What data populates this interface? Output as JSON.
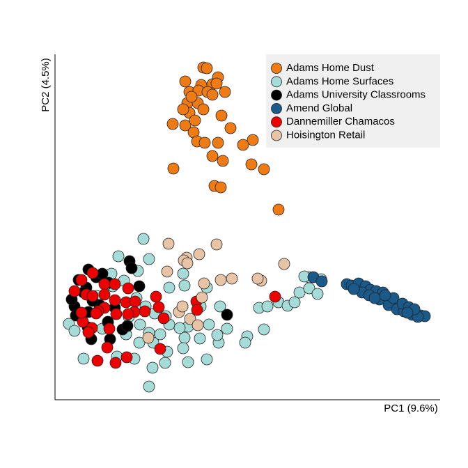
{
  "chart_data": {
    "type": "scatter",
    "xlabel": "PC1 (9.6%)",
    "ylabel": "PC2 (4.5%)",
    "xlim": [
      0,
      553
    ],
    "ylim": [
      0,
      496
    ],
    "legend": "upper right",
    "series": [
      {
        "name": "Adams Home Surfaces",
        "color": "#a6dcd8",
        "x": [
          127,
          91,
          135,
          164,
          186,
          218,
          184,
          119,
          81,
          67,
          99,
          83,
          20,
          41,
          135,
          140,
          158,
          191,
          218,
          235,
          233,
          208,
          186,
          184,
          161,
          141,
          151,
          135,
          121,
          114,
          89,
          102,
          122,
          130,
          143,
          164,
          191,
          221,
          247,
          276,
          273,
          237,
          209,
          300,
          293,
          305,
          321,
          334,
          344,
          351,
          365,
          365,
          377,
          382,
          358,
          68,
          28,
          117,
          76,
          106,
          179,
          159,
          60,
          74
        ],
        "values": [
          231,
          206,
          202,
          161,
          164,
          161,
          181,
          185,
          181,
          179,
          171,
          163,
          109,
          59,
          19,
          46,
          53,
          54,
          58,
          82,
          93,
          88,
          89,
          74,
          69,
          82,
          94,
          96,
          82,
          59,
          62,
          94,
          108,
          134,
          124,
          108,
          105,
          108,
          102,
          91,
          82,
          134,
          134,
          101,
          132,
          134,
          140,
          135,
          140,
          154,
          160,
          176,
          152,
          173,
          177,
          102,
          99,
          146,
          111,
          119,
          103,
          120,
          149,
          166
        ]
      },
      {
        "name": "Adams University Classrooms",
        "color": "#000000",
        "x": [
          107,
          110,
          48,
          34,
          59,
          68,
          77,
          121,
          45,
          41,
          28,
          48,
          30,
          47,
          76,
          97,
          104,
          52,
          79,
          247,
          86,
          64,
          24,
          54
        ],
        "values": [
          199,
          189,
          187,
          172,
          176,
          181,
          168,
          163,
          161,
          154,
          134,
          126,
          121,
          104,
          112,
          101,
          106,
          87,
          87,
          122,
          132,
          136,
          144,
          142
        ]
      },
      {
        "name": "Dannemiller Chamacos",
        "color": "#ee0000",
        "x": [
          38,
          54,
          71,
          86,
          28,
          45,
          54,
          71,
          86,
          102,
          115,
          105,
          145,
          149,
          129,
          114,
          88,
          71,
          62,
          40,
          59,
          78,
          105,
          156,
          203,
          204,
          316,
          53,
          75,
          151,
          61,
          87,
          103,
          48,
          38
        ],
        "values": [
          172,
          182,
          166,
          166,
          156,
          151,
          149,
          151,
          143,
          140,
          141,
          160,
          148,
          133,
          127,
          126,
          123,
          132,
          127,
          112,
          124,
          102,
          123,
          117,
          141,
          129,
          148,
          103,
          75,
          73,
          56,
          53,
          61,
          97,
          125
        ]
      },
      {
        "name": "Hoisington Retail",
        "color": "#e8c4a6",
        "x": [
          163,
          232,
          189,
          207,
          185,
          161,
          190,
          329,
          238,
          254,
          296,
          291,
          178,
          194,
          205,
          211,
          183,
          134,
          214
        ],
        "values": [
          224,
          223,
          204,
          209,
          200,
          184,
          196,
          195,
          172,
          174,
          171,
          174,
          126,
          116,
          107,
          147,
          134,
          89,
          167
        ]
      },
      {
        "name": "Amend Global",
        "color": "#1a5a8a",
        "x": [
          371,
          383,
          419,
          426,
          434,
          441,
          449,
          456,
          463,
          469,
          476,
          483,
          489,
          496,
          503,
          511,
          518,
          525,
          531,
          436,
          446,
          453,
          461,
          471,
          466,
          479,
          491,
          501,
          513,
          521,
          441,
          451,
          459,
          486,
          499,
          508,
          516,
          429,
          474,
          506
        ],
        "values": [
          176,
          170,
          166,
          164,
          162,
          159,
          156,
          154,
          151,
          148,
          144,
          142,
          138,
          134,
          131,
          127,
          124,
          121,
          120,
          167,
          163,
          158,
          156,
          154,
          144,
          136,
          130,
          127,
          122,
          119,
          154,
          150,
          146,
          146,
          138,
          133,
          130,
          159,
          150,
          125
        ]
      },
      {
        "name": "Adams Home Dust",
        "color": "#ef7b14",
        "x": [
          213,
          218,
          234,
          187,
          210,
          226,
          193,
          206,
          219,
          244,
          226,
          190,
          205,
          193,
          213,
          239,
          169,
          187,
          252,
          199,
          204,
          215,
          234,
          284,
          270,
          226,
          241,
          170,
          282,
          300,
          229,
          238,
          321,
          196,
          232,
          184,
          201
        ],
        "values": [
          477,
          476,
          463,
          457,
          452,
          453,
          442,
          444,
          442,
          442,
          438,
          426,
          426,
          412,
          417,
          408,
          396,
          394,
          390,
          384,
          371,
          369,
          369,
          373,
          366,
          350,
          343,
          332,
          338,
          331,
          307,
          305,
          273,
          435,
          454,
          417,
          401
        ]
      }
    ],
    "legend_order": [
      5,
      0,
      1,
      4,
      2,
      3
    ]
  }
}
